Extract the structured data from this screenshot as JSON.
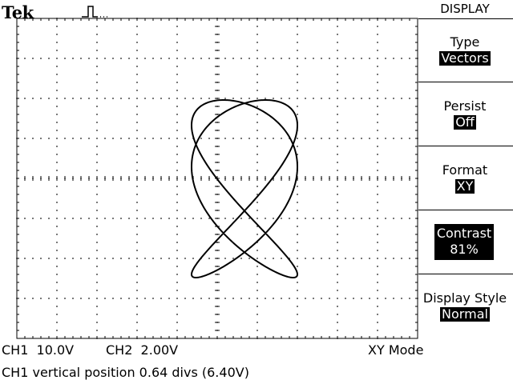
{
  "header": {
    "brand": "Tek",
    "trigger_icon": "pulse-trigger-icon"
  },
  "menu": {
    "title": "DISPLAY",
    "items": [
      {
        "label": "Type",
        "value": "Vectors"
      },
      {
        "label": "Persist",
        "value": "Off"
      },
      {
        "label": "Format",
        "value": "XY"
      },
      {
        "label": "Contrast",
        "value": "81%"
      },
      {
        "label": "Display Style",
        "value": "Normal"
      }
    ]
  },
  "status": {
    "ch1": "CH1  10.0V",
    "ch2": "CH2  2.00V",
    "mode": "XY Mode",
    "message": "CH1 vertical position 0.64 divs (6.40V)"
  },
  "colors": {
    "background": "#ffffff",
    "foreground": "#000000"
  }
}
